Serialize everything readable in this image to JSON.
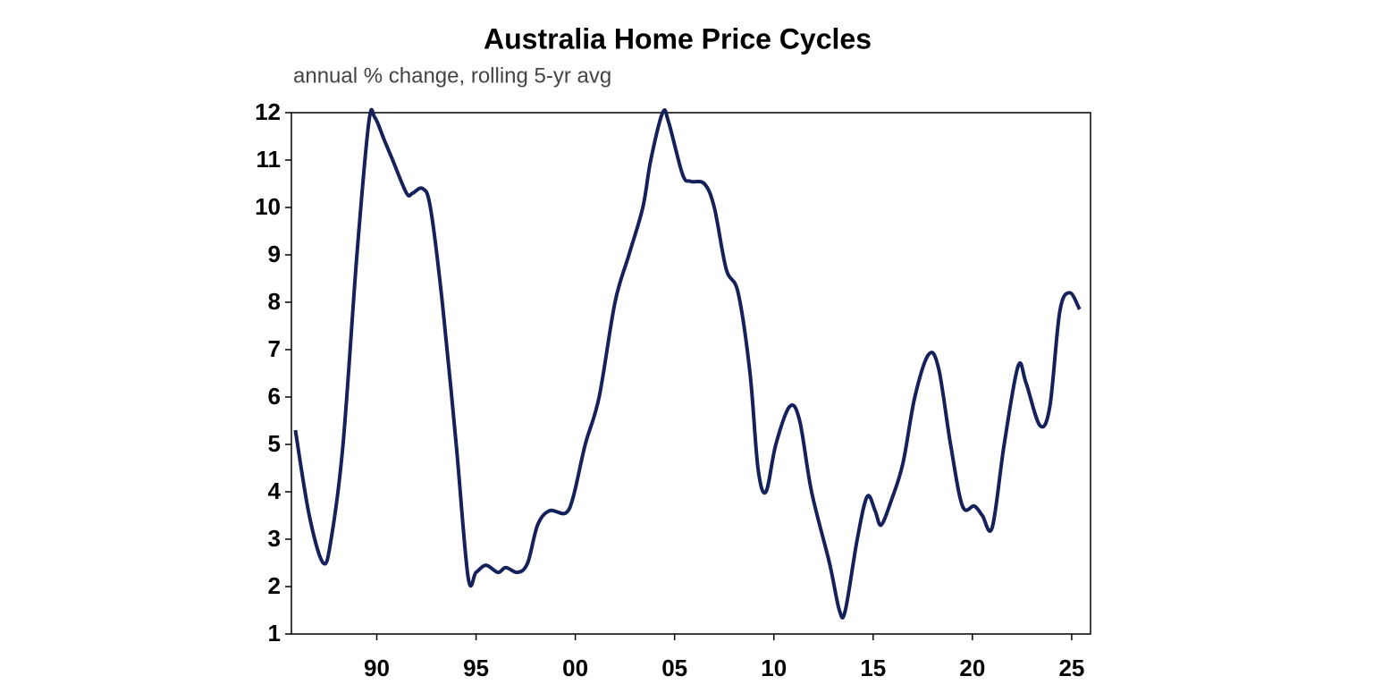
{
  "chart_data": {
    "type": "line",
    "title": "Australia Home Price Cycles",
    "subtitle": "annual % change, rolling 5-yr avg",
    "x": [
      1985.9,
      1986.6,
      1987.3,
      1987.7,
      1988.3,
      1989.0,
      1989.6,
      1989.9,
      1990.4,
      1990.8,
      1991.5,
      1991.8,
      1992.3,
      1992.7,
      1993.3,
      1994.0,
      1994.6,
      1995.0,
      1995.5,
      1996.1,
      1996.5,
      1997.1,
      1997.6,
      1998.1,
      1998.7,
      1999.5,
      1999.9,
      2000.5,
      2001.2,
      2002.0,
      2002.7,
      2003.4,
      2003.8,
      2004.4,
      2004.7,
      2005.4,
      2005.8,
      2006.5,
      2007.0,
      2007.6,
      2008.2,
      2008.8,
      2009.2,
      2009.6,
      2010.1,
      2010.8,
      2011.3,
      2011.9,
      2012.8,
      2013.3,
      2013.6,
      2014.2,
      2014.7,
      2015.1,
      2015.4,
      2015.9,
      2016.5,
      2017.1,
      2017.8,
      2018.3,
      2018.9,
      2019.5,
      2020.1,
      2020.5,
      2021.0,
      2021.6,
      2022.3,
      2022.7,
      2023.4,
      2023.9,
      2024.4,
      2024.9,
      2025.4
    ],
    "series": [
      {
        "color": "#14215a",
        "values": [
          5.3,
          3.5,
          2.5,
          3.0,
          5.0,
          9.0,
          11.8,
          11.9,
          11.4,
          11.0,
          10.3,
          10.3,
          10.4,
          10.0,
          8.0,
          5.0,
          2.2,
          2.3,
          2.45,
          2.3,
          2.4,
          2.3,
          2.5,
          3.3,
          3.6,
          3.55,
          3.9,
          5.0,
          6.0,
          8.0,
          9.0,
          10.0,
          11.0,
          12.0,
          11.8,
          10.7,
          10.55,
          10.5,
          10.0,
          8.7,
          8.2,
          6.5,
          4.5,
          4.0,
          5.0,
          5.8,
          5.5,
          4.0,
          2.5,
          1.5,
          1.5,
          3.0,
          3.9,
          3.6,
          3.3,
          3.8,
          4.6,
          6.0,
          6.9,
          6.6,
          5.0,
          3.7,
          3.7,
          3.5,
          3.25,
          5.0,
          6.65,
          6.3,
          5.4,
          5.8,
          7.8,
          8.2,
          7.85
        ]
      }
    ],
    "xlim": [
      1985.7,
      2025.95
    ],
    "ylim": [
      1,
      12
    ],
    "xticks": [
      {
        "value": 1990,
        "label": "90"
      },
      {
        "value": 1995,
        "label": "95"
      },
      {
        "value": 2000,
        "label": "00"
      },
      {
        "value": 2005,
        "label": "05"
      },
      {
        "value": 2010,
        "label": "10"
      },
      {
        "value": 2015,
        "label": "15"
      },
      {
        "value": 2020,
        "label": "20"
      },
      {
        "value": 2025,
        "label": "25"
      }
    ],
    "yticks": [
      1,
      2,
      3,
      4,
      5,
      6,
      7,
      8,
      9,
      10,
      11,
      12
    ]
  }
}
